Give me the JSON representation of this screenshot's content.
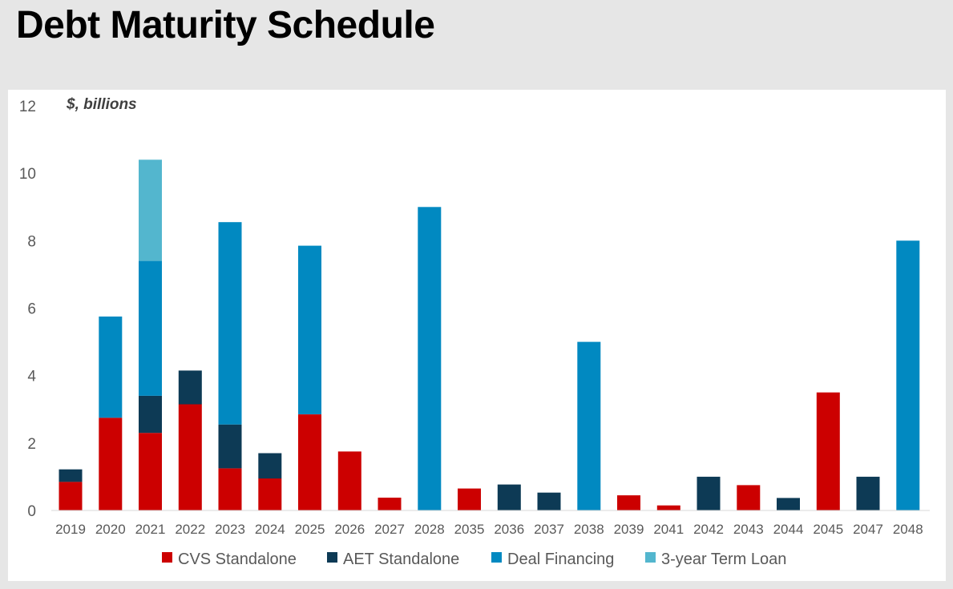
{
  "title": "Debt Maturity Schedule",
  "chart_data": {
    "type": "bar",
    "stacked": true,
    "unit_label": "$, billions",
    "ylim": [
      0,
      12
    ],
    "yticks": [
      0,
      2,
      4,
      6,
      8,
      10,
      12
    ],
    "grid": false,
    "legend_position": "bottom",
    "categories": [
      "2019",
      "2020",
      "2021",
      "2022",
      "2023",
      "2024",
      "2025",
      "2026",
      "2027",
      "2028",
      "2035",
      "2036",
      "2037",
      "2038",
      "2039",
      "2041",
      "2042",
      "2043",
      "2044",
      "2045",
      "2047",
      "2048"
    ],
    "series": [
      {
        "name": "CVS Standalone",
        "color": "#cc0000",
        "values": [
          0.85,
          2.75,
          2.3,
          3.15,
          1.25,
          0.95,
          2.85,
          1.75,
          0.38,
          0,
          0.65,
          0,
          0,
          0,
          0.45,
          0.15,
          0,
          0.75,
          0,
          3.5,
          0,
          0
        ]
      },
      {
        "name": "AET Standalone",
        "color": "#0d3a55",
        "values": [
          0.37,
          0,
          1.1,
          1.0,
          1.3,
          0.75,
          0,
          0,
          0,
          0,
          0,
          0.77,
          0.53,
          0,
          0,
          0,
          1.0,
          0,
          0.37,
          0,
          1.0,
          0
        ]
      },
      {
        "name": "Deal Financing",
        "color": "#0189c1",
        "values": [
          0,
          3.0,
          4.0,
          0,
          6.0,
          0,
          5.0,
          0,
          0,
          9.0,
          0,
          0,
          0,
          5.0,
          0,
          0,
          0,
          0,
          0,
          0,
          0,
          8.0
        ]
      },
      {
        "name": "3-year Term Loan",
        "color": "#53b6ce",
        "values": [
          0,
          0,
          3.0,
          0,
          0,
          0,
          0,
          0,
          0,
          0,
          0,
          0,
          0,
          0,
          0,
          0,
          0,
          0,
          0,
          0,
          0,
          0
        ]
      }
    ]
  }
}
